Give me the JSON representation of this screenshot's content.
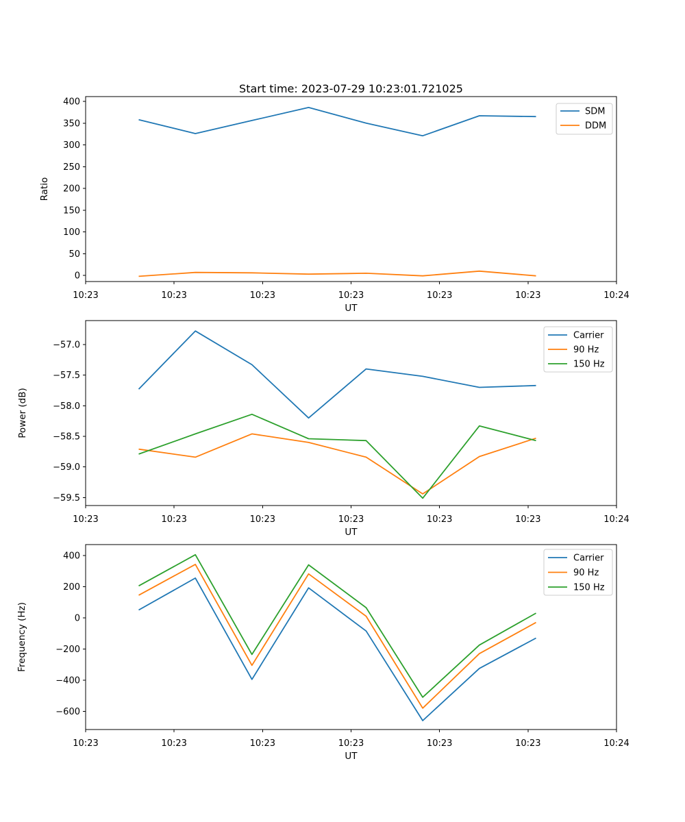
{
  "figure": {
    "title": "Start time: 2023-07-29 10:23:01.721025",
    "background_color": "#ffffff",
    "axis_color": "#000000"
  },
  "chart_data": [
    {
      "type": "line",
      "name": "ratio-vs-time",
      "xlabel": "UT",
      "ylabel": "Ratio",
      "grid": false,
      "legend_position": "upper right",
      "xlim": [
        0,
        60
      ],
      "x_seconds": [
        6.0,
        12.4,
        18.8,
        25.2,
        31.7,
        38.1,
        44.5,
        50.9
      ],
      "xticks": {
        "positions": [
          0,
          10,
          20,
          30,
          40,
          50,
          60
        ],
        "labels": [
          "10:23",
          "10:23",
          "10:23",
          "10:23",
          "10:23",
          "10:23",
          "10:24"
        ]
      },
      "ylim": [
        -14,
        411
      ],
      "yticks": {
        "values": [
          0,
          50,
          100,
          150,
          200,
          250,
          300,
          350,
          400
        ],
        "labels": [
          "0",
          "50",
          "100",
          "150",
          "200",
          "250",
          "300",
          "350",
          "400"
        ]
      },
      "series": [
        {
          "name": "SDM",
          "color": "#1f77b4",
          "values": [
            358,
            326,
            356,
            386,
            350,
            321,
            367,
            365
          ]
        },
        {
          "name": "DDM",
          "color": "#ff7f0e",
          "values": [
            -2,
            7,
            6,
            3,
            5,
            -1,
            10,
            -1
          ]
        }
      ]
    },
    {
      "type": "line",
      "name": "power-vs-time",
      "xlabel": "UT",
      "ylabel": "Power (dB)",
      "grid": false,
      "legend_position": "upper right",
      "xlim": [
        0,
        60
      ],
      "x_seconds": [
        6.0,
        12.4,
        18.8,
        25.2,
        31.7,
        38.1,
        44.5,
        50.9
      ],
      "xticks": {
        "positions": [
          0,
          10,
          20,
          30,
          40,
          50,
          60
        ],
        "labels": [
          "10:23",
          "10:23",
          "10:23",
          "10:23",
          "10:23",
          "10:23",
          "10:24"
        ]
      },
      "ylim": [
        -59.63,
        -56.61
      ],
      "yticks": {
        "values": [
          -59.5,
          -59.0,
          -58.5,
          -58.0,
          -57.5,
          -57.0
        ],
        "labels": [
          "−59.5",
          "−59.0",
          "−58.5",
          "−58.0",
          "−57.5",
          "−57.0"
        ]
      },
      "series": [
        {
          "name": "Carrier",
          "color": "#1f77b4",
          "values": [
            -57.73,
            -56.78,
            -57.33,
            -58.2,
            -57.4,
            -57.52,
            -57.7,
            -57.67
          ]
        },
        {
          "name": "90 Hz",
          "color": "#ff7f0e",
          "values": [
            -58.71,
            -58.84,
            -58.46,
            -58.6,
            -58.84,
            -59.44,
            -58.83,
            -58.53
          ]
        },
        {
          "name": "150 Hz",
          "color": "#2ca02c",
          "values": [
            -58.79,
            -58.46,
            -58.14,
            -58.54,
            -58.57,
            -59.51,
            -58.33,
            -58.57
          ]
        }
      ]
    },
    {
      "type": "line",
      "name": "frequency-vs-time",
      "xlabel": "UT",
      "ylabel": "Frequency (Hz)",
      "grid": false,
      "legend_position": "upper right",
      "xlim": [
        0,
        60
      ],
      "x_seconds": [
        6.0,
        12.4,
        18.8,
        25.2,
        31.7,
        38.1,
        44.5,
        50.9
      ],
      "xticks": {
        "positions": [
          0,
          10,
          20,
          30,
          40,
          50,
          60
        ],
        "labels": [
          "10:23",
          "10:23",
          "10:23",
          "10:23",
          "10:23",
          "10:23",
          "10:24"
        ]
      },
      "ylim": [
        -717,
        470
      ],
      "yticks": {
        "values": [
          -600,
          -400,
          -200,
          0,
          200,
          400
        ],
        "labels": [
          "−600",
          "−400",
          "−200",
          "0",
          "200",
          "400"
        ]
      },
      "series": [
        {
          "name": "Carrier",
          "color": "#1f77b4",
          "values": [
            50,
            255,
            -395,
            192,
            -85,
            -660,
            -325,
            -130
          ]
        },
        {
          "name": "90 Hz",
          "color": "#ff7f0e",
          "values": [
            145,
            343,
            -305,
            282,
            10,
            -580,
            -230,
            -30
          ]
        },
        {
          "name": "150 Hz",
          "color": "#2ca02c",
          "values": [
            205,
            405,
            -235,
            340,
            65,
            -510,
            -175,
            30
          ]
        }
      ]
    }
  ]
}
